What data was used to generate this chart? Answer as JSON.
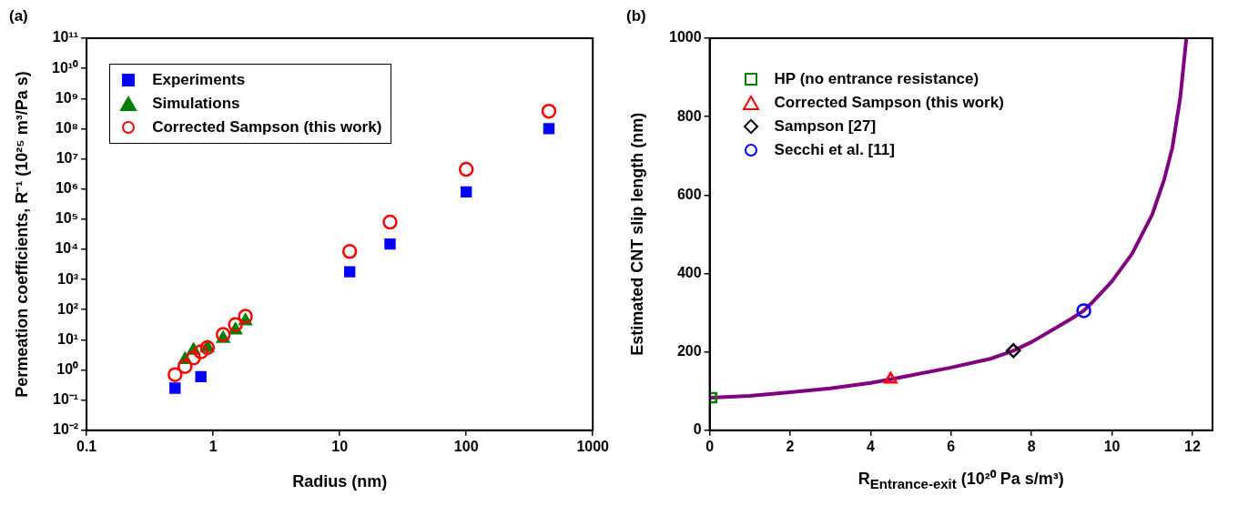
{
  "chart_data": [
    {
      "type": "scatter",
      "title": "(a)",
      "xlabel": "Radius (nm)",
      "ylabel": "Permeation coefficients,  R⁻¹ (10²⁵ m³/Pa s)",
      "log": "xy",
      "grid": false,
      "legend": "top left",
      "xlim": [
        0.1,
        1000
      ],
      "xticks": [
        0.1,
        1,
        10,
        100,
        1000
      ],
      "ylim": [
        0.01,
        100000000000
      ],
      "yticks": [
        {
          "value": 0.01,
          "label": "10⁻²"
        },
        {
          "value": 0.1,
          "label": "10⁻¹"
        },
        {
          "value": 1,
          "label": "10⁰"
        },
        {
          "value": 10,
          "label": "10¹"
        },
        {
          "value": 100,
          "label": "10²"
        },
        {
          "value": 1000,
          "label": "10³"
        },
        {
          "value": 10000,
          "label": "10⁴"
        },
        {
          "value": 100000,
          "label": "10⁵"
        },
        {
          "value": 1000000,
          "label": "10⁶"
        },
        {
          "value": 10000000,
          "label": "10⁷"
        },
        {
          "value": 100000000,
          "label": "10⁸"
        },
        {
          "value": 1000000000,
          "label": "10⁹"
        },
        {
          "value": 10000000000,
          "label": "10¹⁰"
        },
        {
          "value": 100000000000,
          "label": "10¹¹"
        }
      ],
      "series": [
        {
          "name": "Experiments",
          "color": "#0000ff",
          "marker": "square",
          "x": [
            0.5,
            0.8,
            12,
            25,
            100,
            450
          ],
          "values": [
            0.25,
            0.6,
            1800,
            15000,
            800000,
            100000000
          ]
        },
        {
          "name": "Simulations",
          "color": "#008000",
          "marker": "triangle",
          "x": [
            0.6,
            0.7,
            0.9,
            1.2,
            1.5,
            1.8
          ],
          "values": [
            2.2,
            4.5,
            5.5,
            11,
            21,
            42
          ]
        },
        {
          "name": "Corrected Sampson (this work)",
          "color": "#ff0000",
          "marker": "circle",
          "x": [
            0.5,
            0.6,
            0.7,
            0.8,
            0.9,
            1.2,
            1.5,
            1.8,
            12,
            25,
            100,
            450
          ],
          "values": [
            0.7,
            1.3,
            2.5,
            4,
            5.5,
            15,
            32,
            60,
            8500,
            80000,
            4500000,
            380000000
          ]
        }
      ]
    },
    {
      "type": "line",
      "title": "(b)",
      "xlabel": "R$_{Entrance-exit}$ (10²⁰ Pa s/m³)",
      "ylabel": "Estimated CNT slip length (nm)",
      "grid": false,
      "legend": "top left",
      "xlim": [
        0,
        12.5
      ],
      "xticks": [
        0,
        2,
        4,
        6,
        8,
        10,
        12
      ],
      "ylim": [
        0,
        1000
      ],
      "yticks": [
        0,
        200,
        400,
        600,
        800,
        1000
      ],
      "series": [
        {
          "color": "#800080",
          "marker": "none",
          "x": [
            0,
            1,
            2,
            3,
            4,
            4.5,
            5,
            6,
            7,
            7.55,
            8,
            8.5,
            9,
            9.3,
            9.5,
            10,
            10.5,
            11,
            11.3,
            11.5,
            11.7,
            11.85
          ],
          "values": [
            83,
            88,
            97,
            107,
            121,
            130,
            140,
            160,
            183,
            203,
            225,
            255,
            285,
            305,
            325,
            380,
            450,
            550,
            640,
            720,
            850,
            1000
          ]
        },
        {
          "type": "scatter",
          "name": "HP (no entrance resistance)",
          "color": "#008000",
          "marker": "square",
          "x": [
            0.05
          ],
          "values": [
            83
          ]
        },
        {
          "type": "scatter",
          "name": "Corrected Sampson (this work)",
          "color": "#ff0000",
          "marker": "triangle",
          "x": [
            4.5
          ],
          "values": [
            130
          ]
        },
        {
          "type": "scatter",
          "name": "Sampson [27]",
          "color": "#000000",
          "marker": "diamond",
          "x": [
            7.55
          ],
          "values": [
            203
          ]
        },
        {
          "type": "scatter",
          "name": "Secchi et al. [11]",
          "color": "#0000ff",
          "marker": "circle",
          "x": [
            9.3
          ],
          "values": [
            305
          ]
        }
      ]
    }
  ]
}
